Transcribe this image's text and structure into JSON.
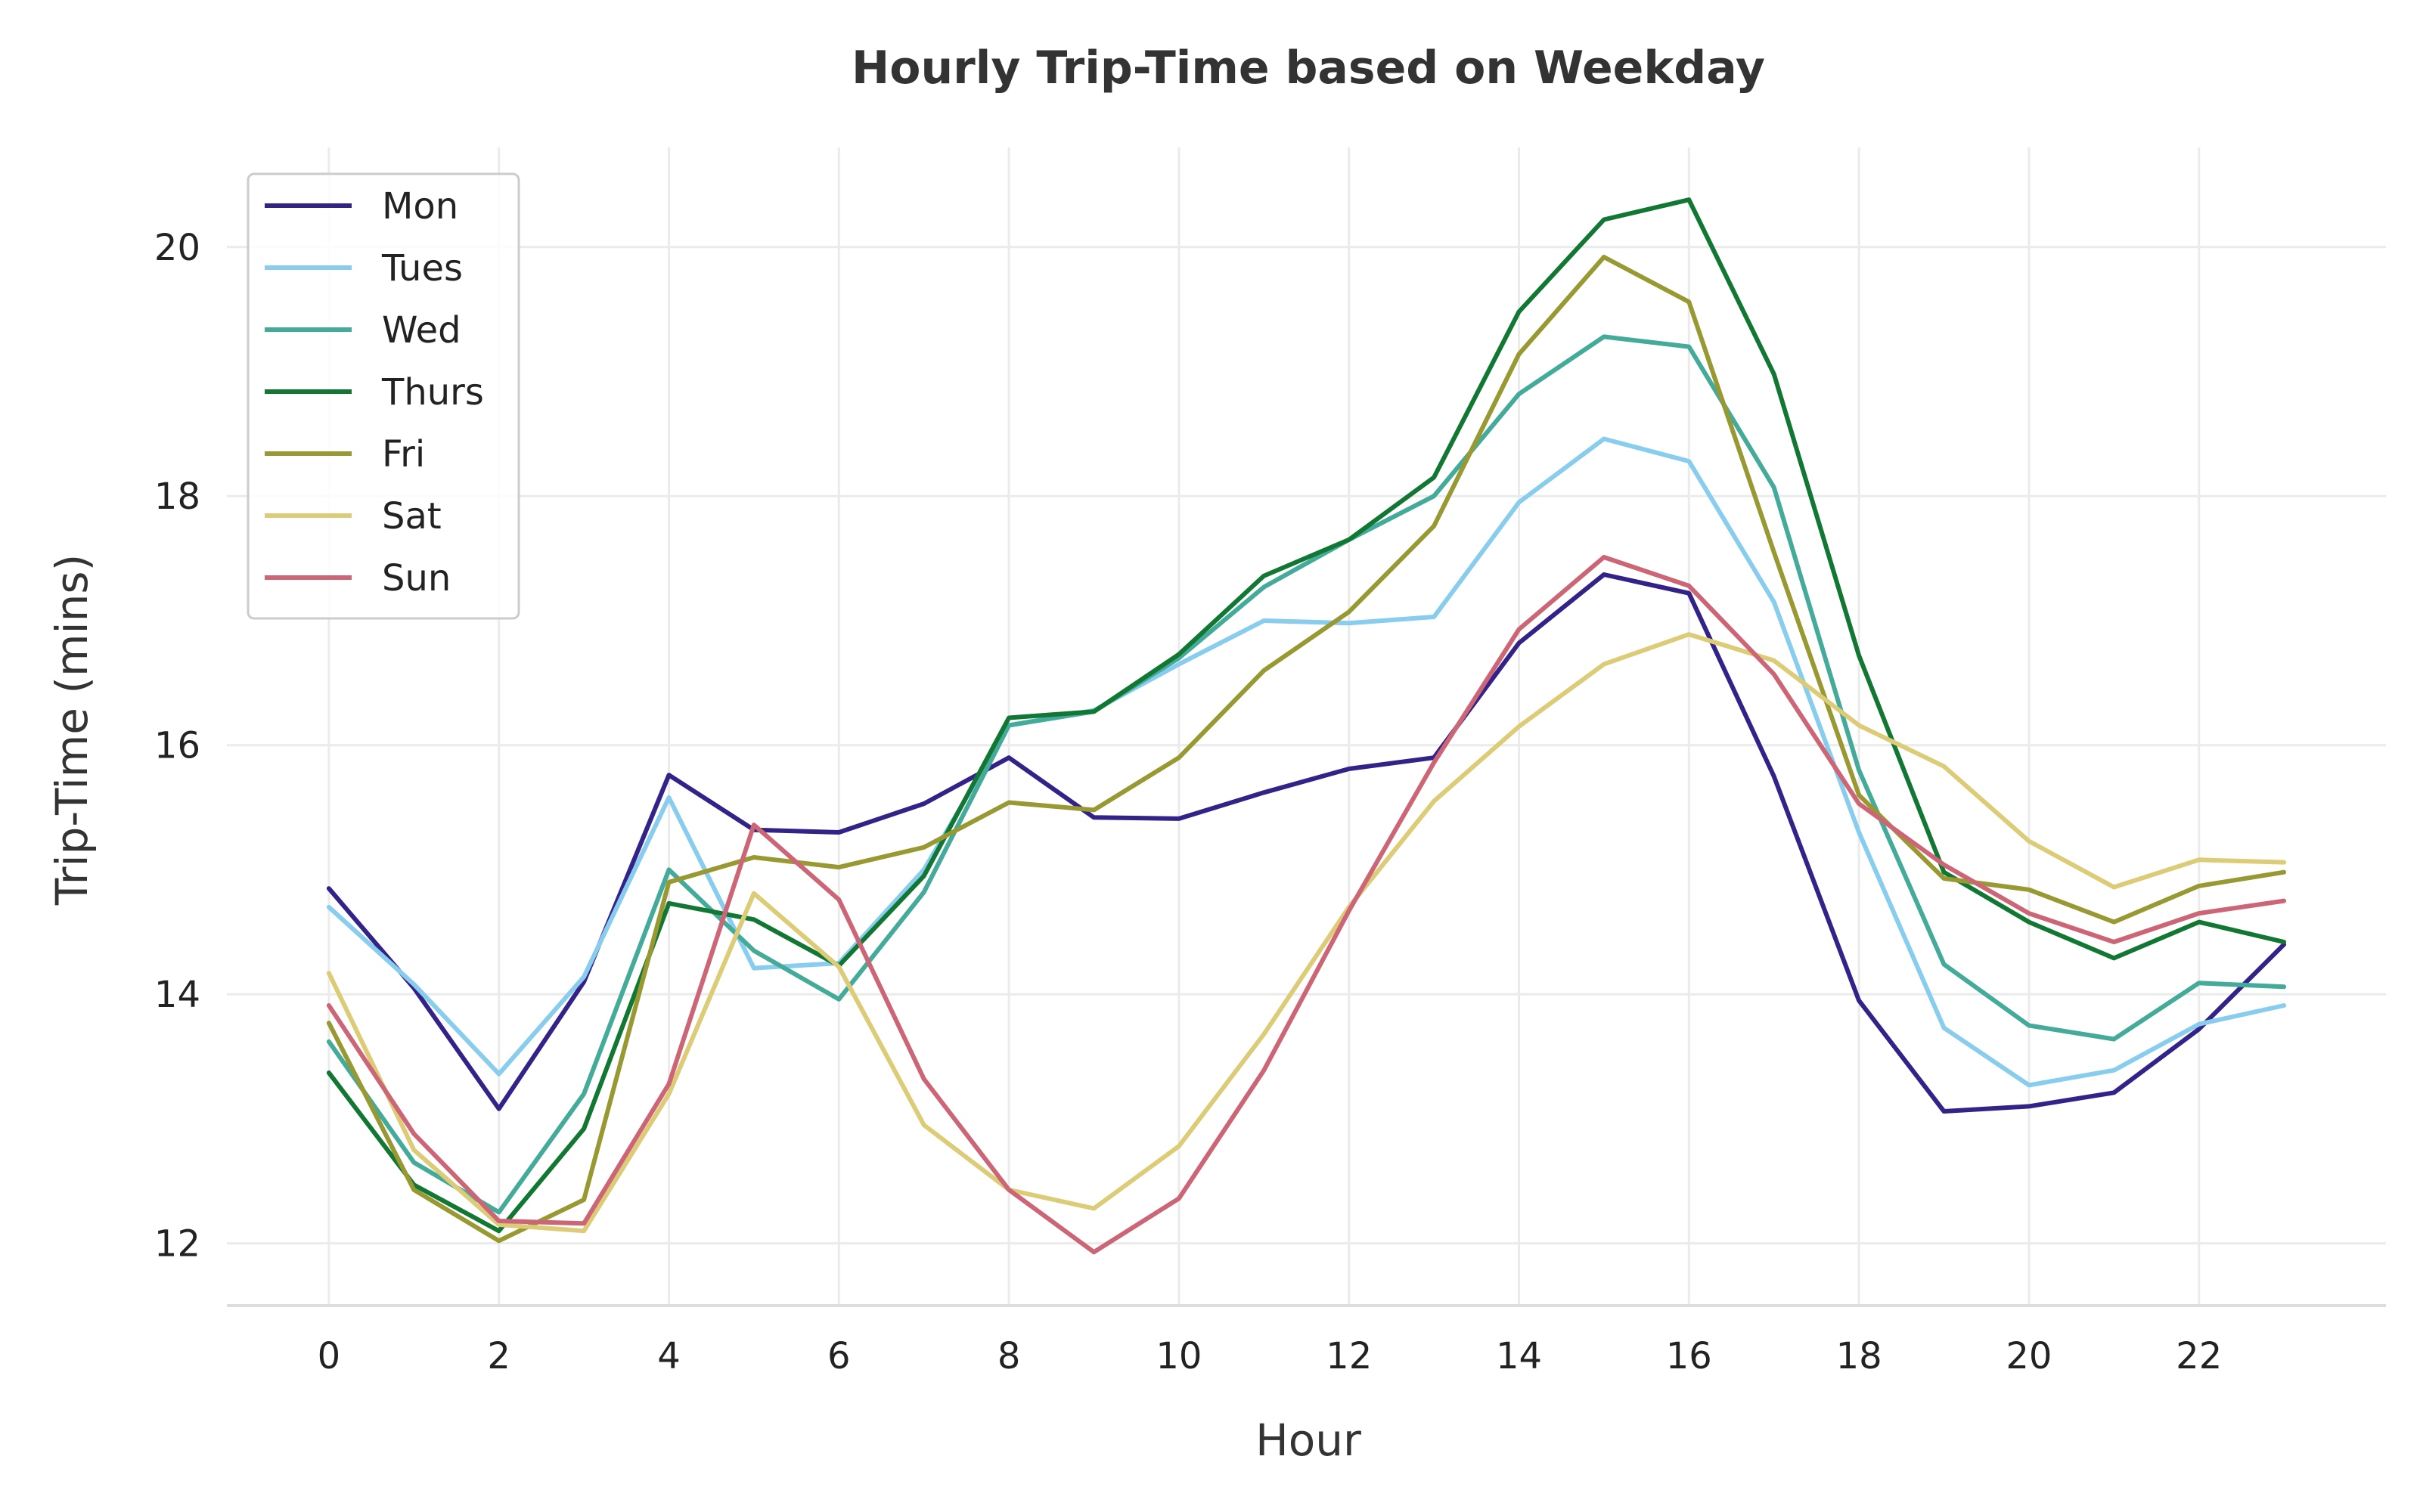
{
  "chart_data": {
    "type": "line",
    "title": "Hourly Trip-Time based on Weekday",
    "xlabel": "Hour",
    "ylabel": "Trip-Time (mins)",
    "xlim": [
      -1.2,
      24.2
    ],
    "ylim": [
      11.5,
      20.8
    ],
    "x_ticks": [
      0,
      2,
      4,
      6,
      8,
      10,
      12,
      14,
      16,
      18,
      20,
      22
    ],
    "y_ticks": [
      12,
      14,
      16,
      18,
      20
    ],
    "grid": true,
    "legend_position": "top-left",
    "x": [
      0,
      1,
      2,
      3,
      4,
      5,
      6,
      7,
      8,
      9,
      10,
      11,
      12,
      13,
      14,
      15,
      16,
      17,
      18,
      19,
      20,
      21,
      22,
      23
    ],
    "series": [
      {
        "name": "Mon",
        "color": "#332288",
        "values": [
          14.85,
          14.05,
          13.08,
          14.1,
          15.76,
          15.32,
          15.3,
          15.53,
          15.9,
          15.42,
          15.41,
          15.62,
          15.81,
          15.9,
          16.82,
          17.37,
          17.22,
          15.75,
          13.95,
          13.06,
          13.1,
          13.21,
          13.72,
          14.4
        ]
      },
      {
        "name": "Tues",
        "color": "#88ccee",
        "values": [
          14.7,
          14.08,
          13.36,
          14.14,
          15.58,
          14.21,
          14.25,
          15.0,
          16.16,
          16.28,
          16.65,
          17.0,
          16.98,
          17.03,
          17.95,
          18.46,
          18.28,
          17.15,
          15.3,
          13.73,
          13.27,
          13.39,
          13.76,
          13.91
        ]
      },
      {
        "name": "Wed",
        "color": "#44aa99",
        "values": [
          13.62,
          12.65,
          12.25,
          13.2,
          15.0,
          14.35,
          13.96,
          14.82,
          16.16,
          16.27,
          16.7,
          17.27,
          17.65,
          18.0,
          18.82,
          19.28,
          19.2,
          18.07,
          15.8,
          14.24,
          13.75,
          13.64,
          14.09,
          14.06
        ]
      },
      {
        "name": "Thurs",
        "color": "#117733",
        "values": [
          13.37,
          12.47,
          12.1,
          12.92,
          14.73,
          14.6,
          14.23,
          14.95,
          16.22,
          16.27,
          16.73,
          17.36,
          17.65,
          18.15,
          19.48,
          20.22,
          20.38,
          18.98,
          16.72,
          14.98,
          14.58,
          14.29,
          14.58,
          14.42
        ]
      },
      {
        "name": "Fri",
        "color": "#999933",
        "values": [
          13.77,
          12.43,
          12.02,
          12.35,
          14.9,
          15.1,
          15.02,
          15.18,
          15.54,
          15.48,
          15.9,
          16.6,
          17.07,
          17.76,
          19.14,
          19.92,
          19.56,
          17.55,
          15.6,
          14.93,
          14.84,
          14.58,
          14.87,
          14.98
        ]
      },
      {
        "name": "Sat",
        "color": "#ddcc77",
        "values": [
          14.17,
          12.75,
          12.15,
          12.1,
          13.2,
          14.81,
          14.22,
          12.95,
          12.43,
          12.28,
          12.78,
          13.68,
          14.7,
          15.55,
          16.15,
          16.65,
          16.89,
          16.68,
          16.16,
          15.83,
          15.23,
          14.86,
          15.08,
          15.06
        ]
      },
      {
        "name": "Sun",
        "color": "#cc6677",
        "values": [
          13.91,
          12.88,
          12.18,
          12.16,
          13.28,
          15.36,
          14.76,
          13.32,
          12.43,
          11.93,
          12.36,
          13.39,
          14.67,
          15.86,
          16.93,
          17.51,
          17.28,
          16.57,
          15.53,
          15.04,
          14.65,
          14.42,
          14.65,
          14.75
        ]
      }
    ]
  }
}
